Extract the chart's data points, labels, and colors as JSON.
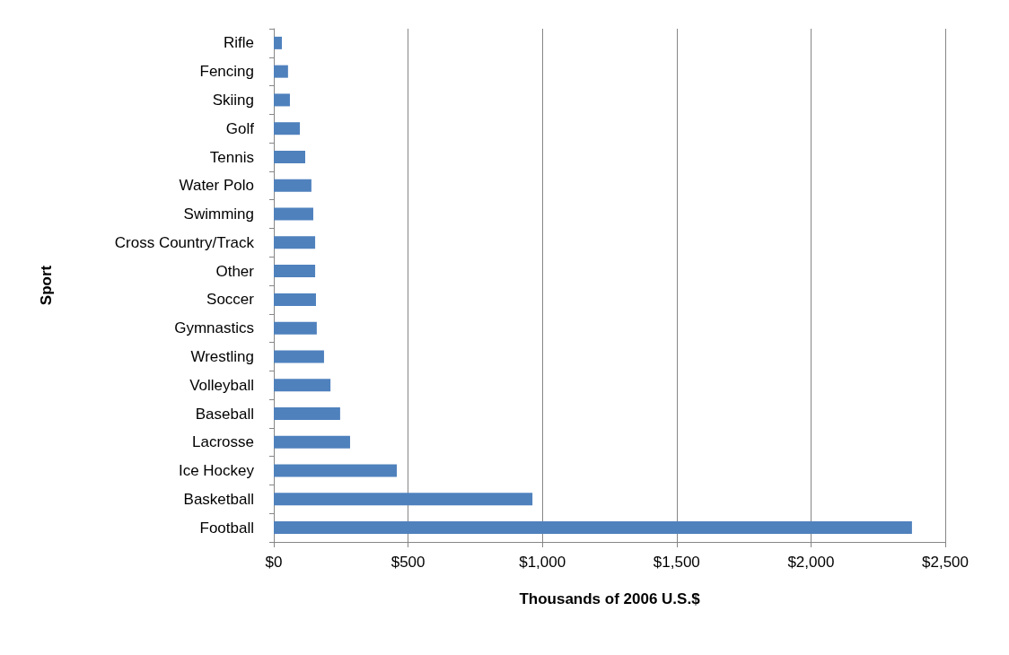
{
  "chart_data": {
    "type": "bar",
    "orientation": "horizontal",
    "xlabel": "Thousands of 2006 U.S.$",
    "ylabel": "Sport",
    "categories": [
      "Rifle",
      "Fencing",
      "Skiing",
      "Golf",
      "Tennis",
      "Water Polo",
      "Swimming",
      "Cross Country/Track",
      "Other",
      "Soccer",
      "Gymnastics",
      "Wrestling",
      "Volleyball",
      "Baseball",
      "Lacrosse",
      "Ice Hockey",
      "Basketball",
      "Football"
    ],
    "values": [
      30,
      53,
      60,
      97,
      117,
      140,
      147,
      154,
      154,
      157,
      160,
      187,
      211,
      247,
      284,
      458,
      963,
      2376
    ],
    "color": "#4f81bd",
    "xlim": [
      0,
      2500
    ],
    "xticks": [
      {
        "value": 0,
        "label": "$0"
      },
      {
        "value": 500,
        "label": "$500"
      },
      {
        "value": 1000,
        "label": "$1,000"
      },
      {
        "value": 1500,
        "label": "$1,500"
      },
      {
        "value": 2000,
        "label": "$2,000"
      },
      {
        "value": 2500,
        "label": "$2,500"
      }
    ],
    "grid": "x"
  }
}
